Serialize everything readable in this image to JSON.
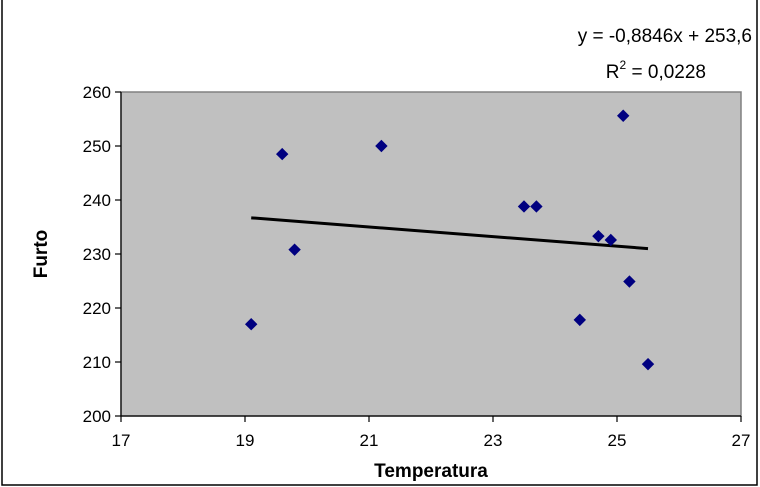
{
  "chart_data": {
    "type": "scatter",
    "xlabel": "Temperatura",
    "ylabel": "Furto",
    "xlim": [
      17,
      27
    ],
    "ylim": [
      200,
      260
    ],
    "x_ticks": [
      "17",
      "19",
      "21",
      "23",
      "25",
      "27"
    ],
    "y_ticks": [
      "200",
      "210",
      "220",
      "230",
      "240",
      "250",
      "260"
    ],
    "grid": false,
    "plot_background": "#c0c0c0",
    "marker_color": "#000080",
    "trendline_color": "#000000",
    "points": [
      {
        "x": 19.1,
        "y": 217.0
      },
      {
        "x": 19.6,
        "y": 248.5
      },
      {
        "x": 19.8,
        "y": 230.8
      },
      {
        "x": 21.2,
        "y": 250.0
      },
      {
        "x": 23.5,
        "y": 238.8
      },
      {
        "x": 23.7,
        "y": 238.8
      },
      {
        "x": 24.4,
        "y": 217.8
      },
      {
        "x": 24.7,
        "y": 233.3
      },
      {
        "x": 24.9,
        "y": 232.6
      },
      {
        "x": 25.1,
        "y": 255.6
      },
      {
        "x": 25.2,
        "y": 224.9
      },
      {
        "x": 25.5,
        "y": 209.6
      }
    ],
    "trendline": {
      "x": [
        19.1,
        25.5
      ],
      "y": [
        236.7,
        231.0
      ]
    },
    "annotations": {
      "equation": "y = -0,8846x + 253,6",
      "r2_prefix": "R",
      "r2_exponent": "2",
      "r2_suffix": " = 0,0228"
    }
  }
}
